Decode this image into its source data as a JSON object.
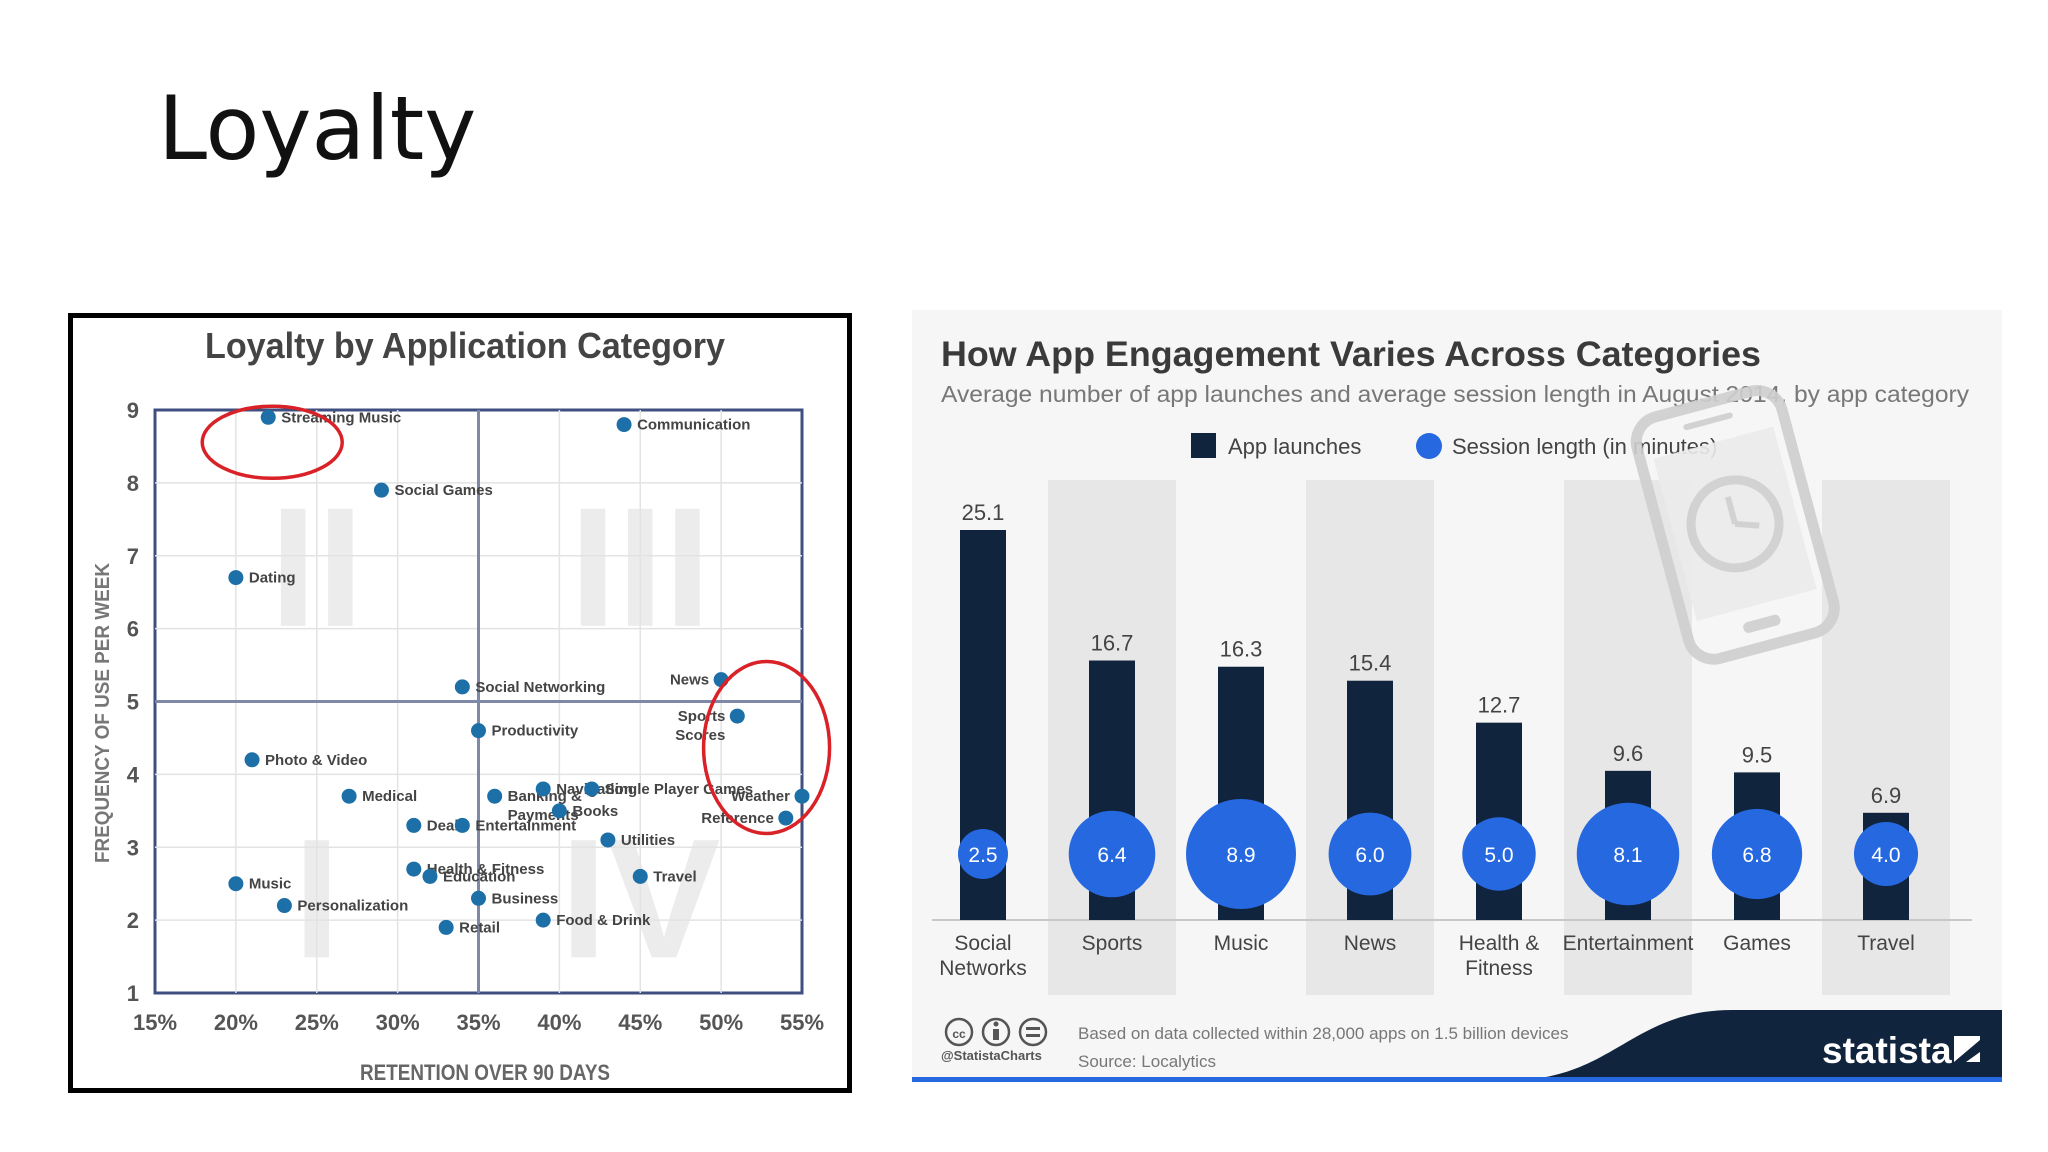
{
  "slide": {
    "title": "Loyalty"
  },
  "colors": {
    "navy": "#11243d",
    "blue": "#2568e0",
    "point": "#1d6fa7",
    "red": "#d92128",
    "bg": "#f6f6f6",
    "shade": "#e7e7e7"
  },
  "chart_data": [
    {
      "type": "scatter",
      "title": "Loyalty by Application Category",
      "xlabel": "RETENTION OVER 90 DAYS",
      "ylabel": "FREQUENCY OF USE PER WEEK",
      "xlim": [
        15,
        55
      ],
      "ylim": [
        1,
        9
      ],
      "xticks": [
        "15%",
        "20%",
        "25%",
        "30%",
        "35%",
        "40%",
        "45%",
        "50%",
        "55%"
      ],
      "yticks": [
        "1",
        "2",
        "3",
        "4",
        "5",
        "6",
        "7",
        "8",
        "9"
      ],
      "quadrants": [
        "II",
        "III",
        "I",
        "IV"
      ],
      "points": [
        {
          "label": "Streaming Music",
          "x": 22,
          "y": 8.9
        },
        {
          "label": "Communication",
          "x": 44,
          "y": 8.8
        },
        {
          "label": "Social Games",
          "x": 29,
          "y": 7.9
        },
        {
          "label": "Dating",
          "x": 20,
          "y": 6.7
        },
        {
          "label": "Social Networking",
          "x": 34,
          "y": 5.2
        },
        {
          "label": "News",
          "x": 50,
          "y": 5.3
        },
        {
          "label": "Sports Scores",
          "x": 51,
          "y": 4.8
        },
        {
          "label": "Productivity",
          "x": 35,
          "y": 4.6
        },
        {
          "label": "Photo & Video",
          "x": 21,
          "y": 4.2
        },
        {
          "label": "Banking & Payments",
          "x": 36,
          "y": 3.7
        },
        {
          "label": "Navigation",
          "x": 39,
          "y": 3.8
        },
        {
          "label": "Single Player Games",
          "x": 42,
          "y": 3.8
        },
        {
          "label": "Weather",
          "x": 55,
          "y": 3.7
        },
        {
          "label": "Medical",
          "x": 27,
          "y": 3.7
        },
        {
          "label": "Books",
          "x": 40,
          "y": 3.5
        },
        {
          "label": "Reference",
          "x": 54,
          "y": 3.4
        },
        {
          "label": "Deals",
          "x": 31,
          "y": 3.3
        },
        {
          "label": "Entertainment",
          "x": 34,
          "y": 3.3
        },
        {
          "label": "Utilities",
          "x": 43,
          "y": 3.1
        },
        {
          "label": "Health & Fitness",
          "x": 31,
          "y": 2.7
        },
        {
          "label": "Education",
          "x": 32,
          "y": 2.6
        },
        {
          "label": "Travel",
          "x": 45,
          "y": 2.6
        },
        {
          "label": "Music",
          "x": 20,
          "y": 2.5
        },
        {
          "label": "Business",
          "x": 35,
          "y": 2.3
        },
        {
          "label": "Personalization",
          "x": 23,
          "y": 2.2
        },
        {
          "label": "Food & Drink",
          "x": 39,
          "y": 2.0
        },
        {
          "label": "Retail",
          "x": 33,
          "y": 1.9
        }
      ],
      "highlighted": [
        "Streaming Music",
        "News",
        "Sports Scores",
        "Weather",
        "Reference"
      ]
    },
    {
      "type": "bar",
      "title": "How App Engagement Varies Across Categories",
      "subtitle": "Average number of app launches and average session length in August 2014, by app category",
      "legend": [
        "App launches",
        "Session length (in minutes)"
      ],
      "categories": [
        "Social Networks",
        "Sports",
        "Music",
        "News",
        "Health & Fitness",
        "Entertainment",
        "Games",
        "Travel"
      ],
      "series": [
        {
          "name": "App launches",
          "values": [
            25.1,
            16.7,
            16.3,
            15.4,
            12.7,
            9.6,
            9.5,
            6.9
          ]
        },
        {
          "name": "Session length (in minutes)",
          "values": [
            2.5,
            6.4,
            8.9,
            6.0,
            5.0,
            8.1,
            6.8,
            4.0
          ]
        }
      ],
      "ylim": [
        0,
        25.1
      ],
      "footer": {
        "note": "Based on data collected within 28,000 apps on 1.5 billion devices",
        "source": "Source: Localytics",
        "handle": "@StatistaCharts",
        "brand": "statista"
      }
    }
  ]
}
